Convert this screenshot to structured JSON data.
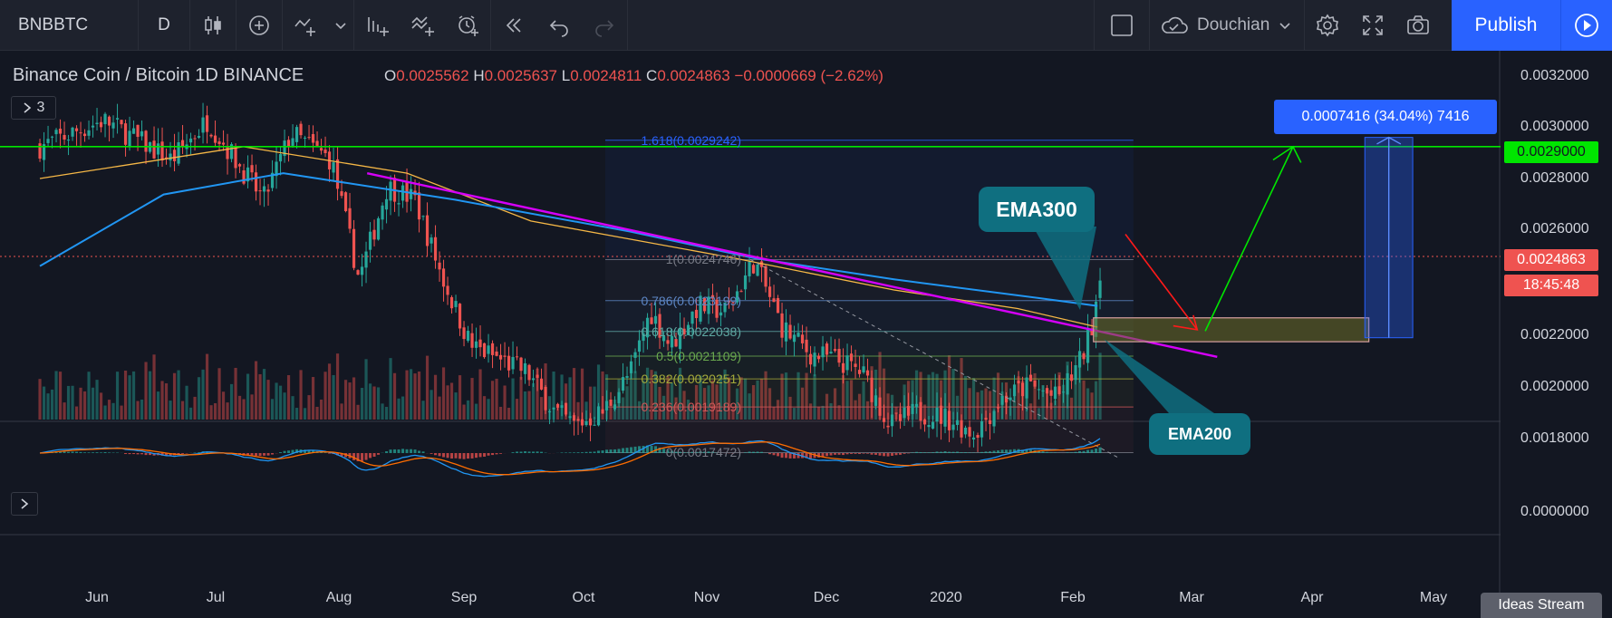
{
  "toolbar": {
    "symbol": "BNBBTC",
    "interval": "D",
    "layout_name": "Douchian",
    "publish_label": "Publish"
  },
  "legend": {
    "title": "Binance Coin / Bitcoin   1D   BINANCE",
    "o_key": "O",
    "o_val": "0.0025562",
    "h_key": "H",
    "h_val": "0.0025637",
    "l_key": "L",
    "l_val": "0.0024811",
    "c_key": "C",
    "c_val": "0.0024863",
    "change": "−0.0000669 (−2.62%)",
    "indicator_count": "3"
  },
  "price_axis": {
    "labels": [
      "0.0032000",
      "0.0030000",
      "0.0028000",
      "0.0026000",
      "0.0022000",
      "0.0020000",
      "0.0018000",
      "0.0000000"
    ],
    "horizontal_line_tag": "0.0029000",
    "last_price_tag": "0.0024863",
    "countdown_tag": "18:45:48"
  },
  "time_axis": [
    "Jun",
    "Jul",
    "Aug",
    "Sep",
    "Oct",
    "Nov",
    "Dec",
    "2020",
    "Feb",
    "Mar",
    "Apr",
    "May"
  ],
  "fib_levels": [
    {
      "label": "1.618(0.0029242)",
      "color": "#2962ff"
    },
    {
      "label": "1(0.0024746)",
      "color": "#787b86"
    },
    {
      "label": "0.786(0.0023199)",
      "color": "#5d86c5"
    },
    {
      "label": "0.618(0.0022038)",
      "color": "#5fa8a3"
    },
    {
      "label": "0.5(0.0021109)",
      "color": "#6aa84f"
    },
    {
      "label": "0.382(0.0020251)",
      "color": "#a3a83a"
    },
    {
      "label": "0.236(0.0019189)",
      "color": "#d15858"
    },
    {
      "label": "0(0.0017472)",
      "color": "#787b86"
    }
  ],
  "annotations": {
    "ema300": "EMA300",
    "ema200": "EMA200",
    "measure": "0.0007416 (34.04%) 7416"
  },
  "footer": {
    "ideas_stream": "Ideas Stream"
  },
  "colors": {
    "up": "#26a69a",
    "down": "#ef5350",
    "ema_blue": "#2196f3",
    "ema_orange": "#f5b746",
    "trendline": "#d500f9",
    "green_line": "#00e600",
    "accent": "#2962ff",
    "callout": "#0f6f80"
  },
  "chart_data": {
    "type": "candlestick",
    "symbol": "BNBBTC",
    "interval": "1D",
    "exchange": "BINANCE",
    "close_path": [
      {
        "x": "2019-05-20",
        "y": 0.0029
      },
      {
        "x": "2019-06-05",
        "y": 0.003
      },
      {
        "x": "2019-06-22",
        "y": 0.00285
      },
      {
        "x": "2019-07-01",
        "y": 0.003
      },
      {
        "x": "2019-07-08",
        "y": 0.00285
      },
      {
        "x": "2019-07-15",
        "y": 0.0027
      },
      {
        "x": "2019-07-22",
        "y": 0.00295
      },
      {
        "x": "2019-08-01",
        "y": 0.00285
      },
      {
        "x": "2019-08-08",
        "y": 0.0024
      },
      {
        "x": "2019-08-15",
        "y": 0.00275
      },
      {
        "x": "2019-08-22",
        "y": 0.0027
      },
      {
        "x": "2019-08-29",
        "y": 0.0024
      },
      {
        "x": "2019-09-05",
        "y": 0.00215
      },
      {
        "x": "2019-09-12",
        "y": 0.0021
      },
      {
        "x": "2019-09-19",
        "y": 0.00205
      },
      {
        "x": "2019-09-26",
        "y": 0.0019
      },
      {
        "x": "2019-10-01",
        "y": 0.00185
      },
      {
        "x": "2019-10-08",
        "y": 0.0019
      },
      {
        "x": "2019-10-15",
        "y": 0.00205
      },
      {
        "x": "2019-10-20",
        "y": 0.00228
      },
      {
        "x": "2019-10-25",
        "y": 0.00215
      },
      {
        "x": "2019-11-01",
        "y": 0.0023
      },
      {
        "x": "2019-11-08",
        "y": 0.00228
      },
      {
        "x": "2019-11-15",
        "y": 0.00247
      },
      {
        "x": "2019-11-22",
        "y": 0.00222
      },
      {
        "x": "2019-11-29",
        "y": 0.00212
      },
      {
        "x": "2019-12-05",
        "y": 0.0021
      },
      {
        "x": "2019-12-12",
        "y": 0.00205
      },
      {
        "x": "2019-12-19",
        "y": 0.00185
      },
      {
        "x": "2019-12-26",
        "y": 0.0019
      },
      {
        "x": "2020-01-02",
        "y": 0.00188
      },
      {
        "x": "2020-01-09",
        "y": 0.00182
      },
      {
        "x": "2020-01-16",
        "y": 0.00195
      },
      {
        "x": "2020-01-23",
        "y": 0.002
      },
      {
        "x": "2020-01-30",
        "y": 0.00195
      },
      {
        "x": "2020-02-05",
        "y": 0.0021
      },
      {
        "x": "2020-02-08",
        "y": 0.00225
      },
      {
        "x": "2020-02-10",
        "y": 0.00248
      }
    ],
    "ema200": [
      {
        "x": "2019-05-20",
        "y": 0.00278
      },
      {
        "x": "2019-07-10",
        "y": 0.0029
      },
      {
        "x": "2019-08-20",
        "y": 0.0028
      },
      {
        "x": "2019-09-20",
        "y": 0.00262
      },
      {
        "x": "2019-11-10",
        "y": 0.00248
      },
      {
        "x": "2019-12-20",
        "y": 0.00236
      },
      {
        "x": "2020-01-20",
        "y": 0.00229
      },
      {
        "x": "2020-02-09",
        "y": 0.00222
      }
    ],
    "ema300": [
      {
        "x": "2019-05-20",
        "y": 0.00245
      },
      {
        "x": "2019-06-20",
        "y": 0.00272
      },
      {
        "x": "2019-07-20",
        "y": 0.0028
      },
      {
        "x": "2019-09-01",
        "y": 0.0027
      },
      {
        "x": "2019-10-15",
        "y": 0.00258
      },
      {
        "x": "2019-11-15",
        "y": 0.00248
      },
      {
        "x": "2019-12-20",
        "y": 0.0024
      },
      {
        "x": "2020-01-25",
        "y": 0.00233
      },
      {
        "x": "2020-02-09",
        "y": 0.0023
      }
    ],
    "horizontal_line": 0.0029,
    "last_price": 0.0024863,
    "ylim": [
      0.0017,
      0.0032
    ],
    "xlim": [
      "2019-05-10",
      "2020-05-20"
    ]
  }
}
